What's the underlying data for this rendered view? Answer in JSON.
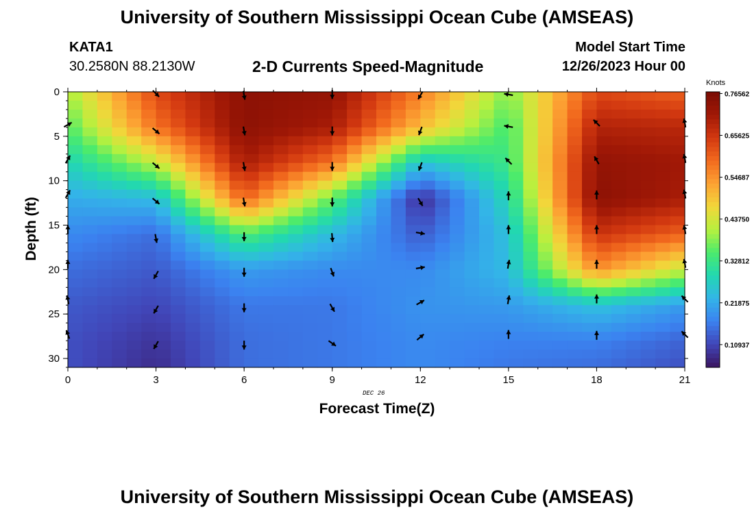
{
  "header": {
    "title": "University of Southern Mississippi Ocean Cube (AMSEAS)",
    "station": "KATA1",
    "coordinates": "30.2580N  88.2130W",
    "subtitle": "2-D Currents Speed-Magnitude",
    "model_start_label": "Model Start Time",
    "model_start_value": "12/26/2023 Hour 00"
  },
  "footer": {
    "title": "University of Southern Mississippi Ocean Cube (AMSEAS)"
  },
  "chart_data": {
    "type": "heatmap",
    "xlabel": "Forecast Time(Z)",
    "ylabel": "Depth (ft)",
    "date_label": "DEC 26",
    "x_ticks": [
      "0",
      "3",
      "6",
      "9",
      "12",
      "15",
      "18",
      "21"
    ],
    "y_ticks": [
      "0",
      "5",
      "10",
      "15",
      "20",
      "25",
      "30"
    ],
    "xlim": [
      0,
      21
    ],
    "ylim": [
      0,
      31
    ],
    "colorbar": {
      "title": "Knots",
      "ticks": [
        "0.76562",
        "0.65625",
        "0.54687",
        "0.43750",
        "0.32812",
        "0.21875",
        "0.10937"
      ],
      "range": [
        0.05,
        0.77
      ],
      "colors": [
        "#3a1460",
        "#4146b8",
        "#3b82f0",
        "#33b4e8",
        "#22d8b0",
        "#4ceb6c",
        "#b8f03e",
        "#f2d63a",
        "#fca233",
        "#f26a1e",
        "#d23810",
        "#a01806",
        "#7a0c04"
      ]
    },
    "speed_grid": {
      "times": [
        0,
        3,
        6,
        9,
        12,
        15,
        18,
        21
      ],
      "depths": [
        0,
        4,
        8,
        12,
        16,
        20,
        24,
        28,
        31
      ],
      "values": [
        [
          0.4,
          0.63,
          0.74,
          0.73,
          0.57,
          0.38,
          0.63,
          0.6
        ],
        [
          0.35,
          0.58,
          0.74,
          0.7,
          0.5,
          0.34,
          0.69,
          0.68
        ],
        [
          0.28,
          0.42,
          0.7,
          0.58,
          0.25,
          0.33,
          0.73,
          0.71
        ],
        [
          0.22,
          0.24,
          0.6,
          0.36,
          0.08,
          0.29,
          0.74,
          0.7
        ],
        [
          0.18,
          0.15,
          0.35,
          0.24,
          0.13,
          0.25,
          0.66,
          0.6
        ],
        [
          0.15,
          0.13,
          0.2,
          0.18,
          0.18,
          0.24,
          0.55,
          0.42
        ],
        [
          0.13,
          0.11,
          0.16,
          0.16,
          0.19,
          0.2,
          0.25,
          0.2
        ],
        [
          0.12,
          0.09,
          0.15,
          0.16,
          0.18,
          0.17,
          0.17,
          0.14
        ],
        [
          0.12,
          0.08,
          0.15,
          0.16,
          0.18,
          0.16,
          0.15,
          0.12
        ]
      ]
    },
    "vectors": [
      {
        "t": 0,
        "depths": [
          3.7,
          7.6,
          11.5,
          15.5,
          19.4,
          23.4,
          27.3
        ],
        "angles_deg": [
          30,
          60,
          60,
          90,
          90,
          100,
          110
        ]
      },
      {
        "t": 3,
        "depths": [
          0.2,
          4.4,
          8.3,
          12.3,
          16.5,
          20.6,
          24.5,
          28.5
        ],
        "angles_deg": [
          -45,
          -40,
          -40,
          -40,
          -80,
          -120,
          -120,
          -120
        ]
      },
      {
        "t": 6,
        "depths": [
          0.4,
          4.4,
          8.4,
          12.4,
          16.3,
          20.3,
          24.3,
          28.5
        ],
        "angles_deg": [
          -80,
          -80,
          -80,
          -80,
          -90,
          -90,
          -90,
          -90
        ]
      },
      {
        "t": 9,
        "depths": [
          0.3,
          4.4,
          8.4,
          12.4,
          16.4,
          20.3,
          24.3,
          28.3
        ],
        "angles_deg": [
          -90,
          -90,
          -90,
          -90,
          -85,
          -70,
          -60,
          -35
        ]
      },
      {
        "t": 12,
        "depths": [
          0.4,
          4.4,
          8.4,
          12.4,
          15.9,
          19.8,
          23.7,
          27.6
        ],
        "angles_deg": [
          -120,
          -110,
          -110,
          -60,
          -10,
          10,
          30,
          40
        ]
      },
      {
        "t": 15,
        "depths": [
          0.3,
          3.9,
          7.8,
          11.7,
          15.5,
          19.4,
          23.4,
          27.3
        ],
        "angles_deg": [
          170,
          170,
          135,
          90,
          90,
          80,
          80,
          90
        ]
      },
      {
        "t": 18,
        "depths": [
          3.5,
          7.7,
          11.6,
          15.5,
          19.4,
          23.3,
          27.4
        ],
        "angles_deg": [
          135,
          120,
          90,
          90,
          90,
          90,
          90
        ]
      },
      {
        "t": 21,
        "depths": [
          3.5,
          7.5,
          11.5,
          15.5,
          19.3,
          23.3,
          27.3
        ],
        "angles_deg": [
          100,
          100,
          100,
          100,
          100,
          135,
          135
        ]
      }
    ]
  }
}
